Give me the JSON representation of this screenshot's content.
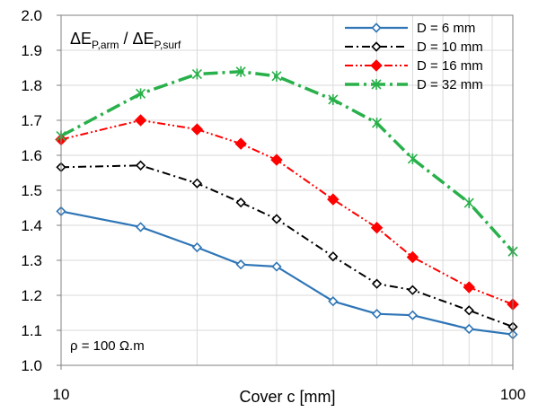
{
  "chart_data": {
    "type": "line",
    "x_scale": "log",
    "xlabel": "Cover c [mm]",
    "ylabel_main": "ΔE",
    "ylabel_sub1": "P,arm",
    "ylabel_sep": " / ΔE",
    "ylabel_sub2": "P,surf",
    "annotation": "ρ = 100 Ω.m",
    "xlim": [
      10,
      100
    ],
    "ylim": [
      1.0,
      2.0
    ],
    "x_ticks": [
      "10",
      "100"
    ],
    "y_ticks": [
      "1.0",
      "1.1",
      "1.2",
      "1.3",
      "1.4",
      "1.5",
      "1.6",
      "1.7",
      "1.8",
      "1.9",
      "2.0"
    ],
    "grid": true,
    "legend_position": "top-right",
    "x": [
      10,
      15,
      20,
      25,
      30,
      40,
      50,
      60,
      80,
      100
    ],
    "series": [
      {
        "name": "D = 6 mm",
        "color": "#2e75b6",
        "dash": "solid",
        "marker": "diamond-open",
        "values": [
          1.44,
          1.395,
          1.337,
          1.288,
          1.282,
          1.183,
          1.147,
          1.143,
          1.104,
          1.088
        ]
      },
      {
        "name": "D = 10 mm",
        "color": "#000000",
        "dash": "dash-dot",
        "marker": "diamond-open",
        "values": [
          1.566,
          1.571,
          1.52,
          1.465,
          1.418,
          1.311,
          1.233,
          1.215,
          1.157,
          1.11
        ]
      },
      {
        "name": "D = 16 mm",
        "color": "#ff0000",
        "dash": "dash-dot-dot",
        "marker": "diamond-filled",
        "values": [
          1.645,
          1.7,
          1.674,
          1.633,
          1.587,
          1.474,
          1.393,
          1.309,
          1.223,
          1.174
        ]
      },
      {
        "name": "D = 32 mm",
        "color": "#28b04a",
        "dash": "long-dash-dot",
        "marker": "asterisk",
        "values": [
          1.655,
          1.776,
          1.832,
          1.839,
          1.826,
          1.759,
          1.692,
          1.59,
          1.464,
          1.325
        ]
      }
    ]
  }
}
